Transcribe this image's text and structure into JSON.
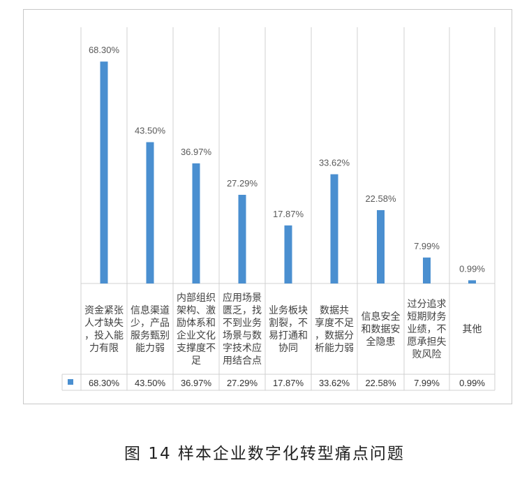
{
  "chart_data": {
    "type": "bar",
    "categories": [
      "资金紧张人才缺失，投入能力有限",
      "信息渠道少，产品服务甄别能力弱",
      "内部组织架构、激励体系和企业文化支撑度不足",
      "应用场景匮乏，找不到业务场景与数字技术应用结合点",
      "业务板块割裂，不易打通和协同",
      "数据共享度不足，数据分析能力弱",
      "信息安全和数据安全隐患",
      "过分追求短期财务业绩，不愿承担失败风险",
      "其他"
    ],
    "category_lines": [
      [
        "资金紧张",
        "人才缺失",
        "，投入能",
        "力有限"
      ],
      [
        "信息渠道",
        "少，产品",
        "服务甄别",
        "能力弱"
      ],
      [
        "内部组织",
        "架构、激",
        "励体系和",
        "企业文化",
        "支撑度不",
        "足"
      ],
      [
        "应用场景",
        "匮乏，找",
        "不到业务",
        "场景与数",
        "字技术应",
        "用结合点"
      ],
      [
        "业务板块",
        "割裂，不",
        "易打通和",
        "协同"
      ],
      [
        "数据共",
        "享度不足",
        "，数据分",
        "析能力弱"
      ],
      [
        "信息安全",
        "和数据安",
        "全隐患"
      ],
      [
        "过分追求",
        "短期财务",
        "业绩，不",
        "愿承担失",
        "败风险"
      ],
      [
        "其他"
      ]
    ],
    "values": [
      68.3,
      43.5,
      36.97,
      27.29,
      17.87,
      33.62,
      22.58,
      7.99,
      0.99
    ],
    "value_labels": [
      "68.30%",
      "43.50%",
      "36.97%",
      "27.29%",
      "17.87%",
      "33.62%",
      "22.58%",
      "7.99%",
      "0.99%"
    ],
    "ylim": [
      0,
      75
    ],
    "grid": "vertical",
    "data_table": true,
    "bar_color": "#4a8fd0",
    "label_color": "#595959"
  },
  "caption": "图 14    样本企业数字化转型痛点问题"
}
